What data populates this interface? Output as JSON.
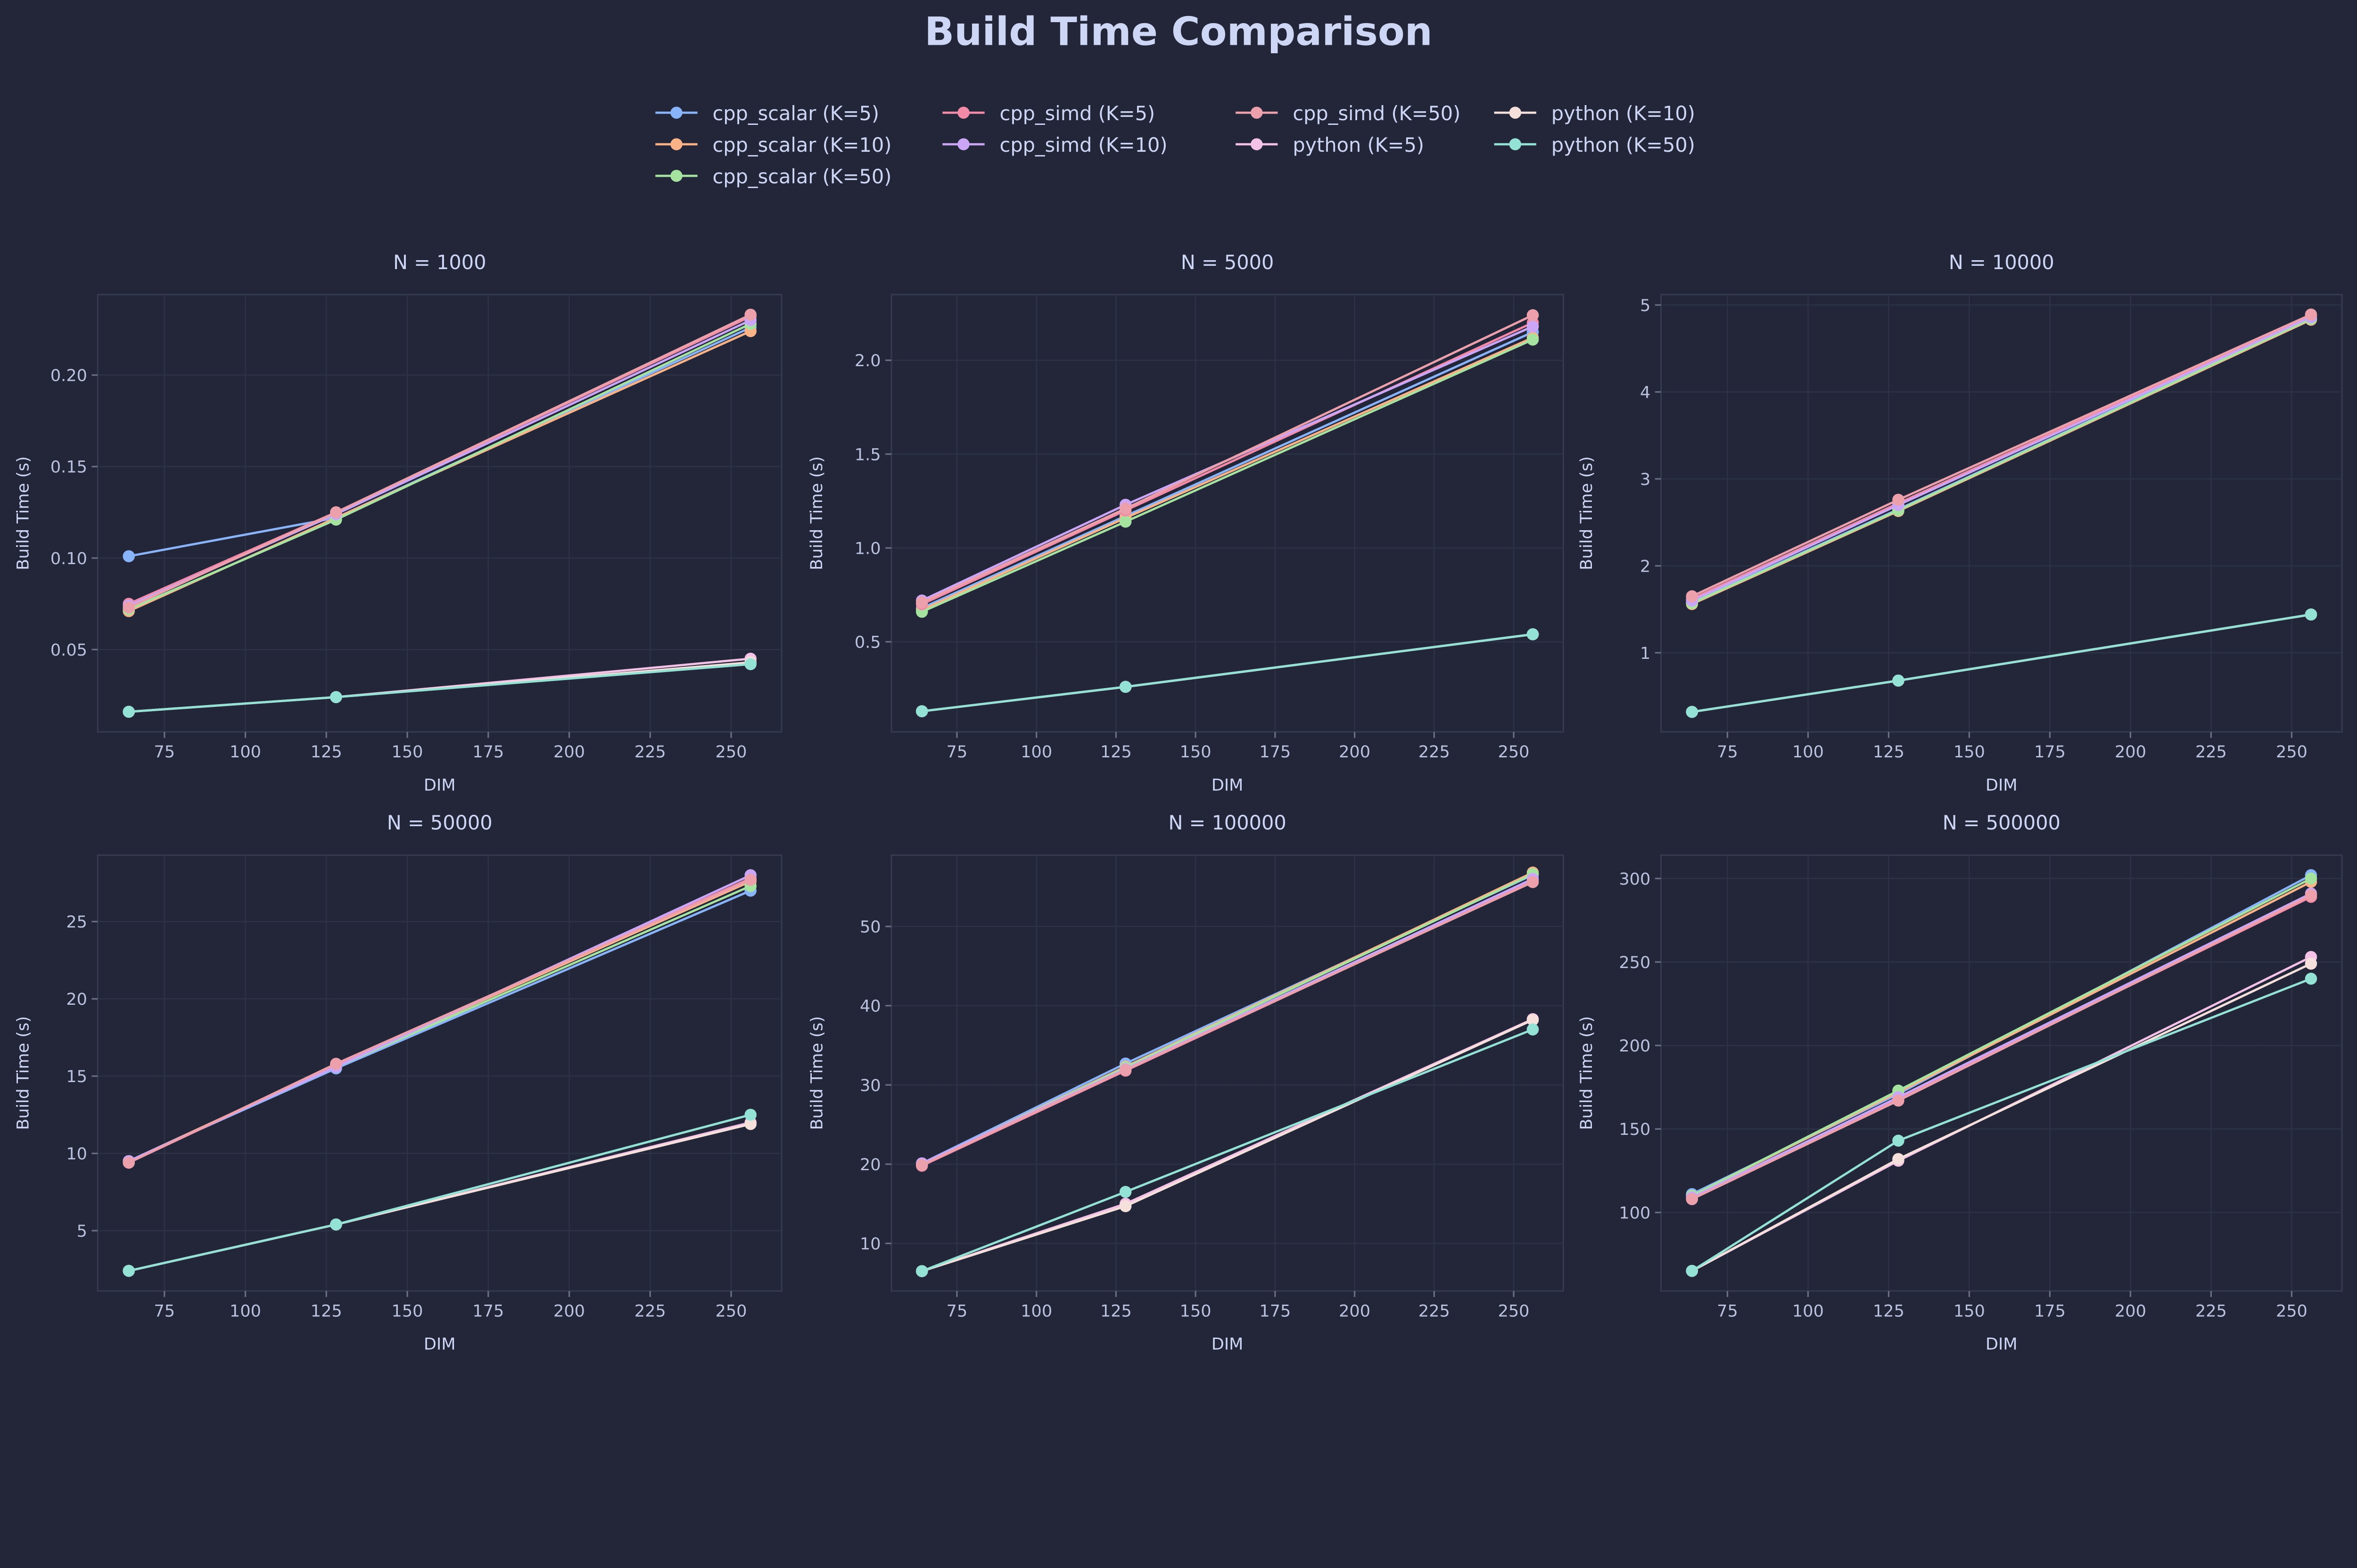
{
  "chart_data": {
    "title": "Build Time Comparison",
    "legend_placement": "top-center",
    "grid": true,
    "background": "#232639",
    "series_meta": [
      {
        "name": "cpp_scalar (K=5)",
        "color": "#89b4fa"
      },
      {
        "name": "cpp_scalar (K=10)",
        "color": "#fab387"
      },
      {
        "name": "cpp_scalar (K=50)",
        "color": "#a6e3a1"
      },
      {
        "name": "cpp_simd (K=5)",
        "color": "#f38ba8"
      },
      {
        "name": "cpp_simd (K=10)",
        "color": "#cba6f7"
      },
      {
        "name": "cpp_simd (K=50)",
        "color": "#eba0ac"
      },
      {
        "name": "python (K=5)",
        "color": "#f5c2e7"
      },
      {
        "name": "python (K=10)",
        "color": "#f5e0dc"
      },
      {
        "name": "python (K=50)",
        "color": "#94e2d5"
      }
    ],
    "panels": [
      {
        "type": "line",
        "title": "N = 1000",
        "xlabel": "DIM",
        "ylabel": "Build Time (s)",
        "x": [
          64,
          128,
          256
        ],
        "xlim": [
          54.4,
          265.6
        ],
        "xticks": [
          75,
          100,
          125,
          150,
          175,
          200,
          225,
          250
        ],
        "ylim": [
          0.005,
          0.244
        ],
        "yticks": [
          0.05,
          0.1,
          0.15,
          0.2
        ],
        "ytick_labels": [
          "0.05",
          "0.10",
          "0.15",
          "0.20"
        ],
        "series": [
          [
            0.101,
            0.122,
            0.226
          ],
          [
            0.071,
            0.122,
            0.224
          ],
          [
            0.072,
            0.121,
            0.228
          ],
          [
            0.075,
            0.125,
            0.232
          ],
          [
            0.074,
            0.124,
            0.23
          ],
          [
            0.073,
            0.125,
            0.233
          ],
          [
            0.016,
            0.024,
            0.045
          ],
          [
            0.016,
            0.024,
            0.043
          ],
          [
            0.016,
            0.024,
            0.042
          ]
        ]
      },
      {
        "type": "line",
        "title": "N = 5000",
        "xlabel": "DIM",
        "ylabel": "Build Time (s)",
        "x": [
          64,
          128,
          256
        ],
        "xlim": [
          54.4,
          265.6
        ],
        "xticks": [
          75,
          100,
          125,
          150,
          175,
          200,
          225,
          250
        ],
        "ylim": [
          0.02,
          2.35
        ],
        "yticks": [
          0.5,
          1.0,
          1.5,
          2.0
        ],
        "ytick_labels": [
          "0.5",
          "1.0",
          "1.5",
          "2.0"
        ],
        "series": [
          [
            0.68,
            1.17,
            2.15
          ],
          [
            0.67,
            1.16,
            2.12
          ],
          [
            0.66,
            1.14,
            2.11
          ],
          [
            0.7,
            1.2,
            2.2
          ],
          [
            0.72,
            1.23,
            2.18
          ],
          [
            0.71,
            1.21,
            2.24
          ],
          [
            0.13,
            0.26,
            0.54
          ],
          [
            0.13,
            0.26,
            0.54
          ],
          [
            0.13,
            0.26,
            0.54
          ]
        ]
      },
      {
        "type": "line",
        "title": "N = 10000",
        "xlabel": "DIM",
        "ylabel": "Build Time (s)",
        "x": [
          64,
          128,
          256
        ],
        "xlim": [
          54.4,
          265.6
        ],
        "xticks": [
          75,
          100,
          125,
          150,
          175,
          200,
          225,
          250
        ],
        "ylim": [
          0.09,
          5.12
        ],
        "yticks": [
          1,
          2,
          3,
          4,
          5
        ],
        "ytick_labels": [
          "1",
          "2",
          "3",
          "4",
          "5"
        ],
        "series": [
          [
            1.58,
            2.65,
            4.85
          ],
          [
            1.56,
            2.63,
            4.83
          ],
          [
            1.57,
            2.64,
            4.84
          ],
          [
            1.62,
            2.72,
            4.88
          ],
          [
            1.6,
            2.7,
            4.86
          ],
          [
            1.65,
            2.76,
            4.89
          ],
          [
            0.32,
            0.68,
            1.44
          ],
          [
            0.32,
            0.68,
            1.44
          ],
          [
            0.32,
            0.68,
            1.44
          ]
        ]
      },
      {
        "type": "line",
        "title": "N = 50000",
        "xlabel": "DIM",
        "ylabel": "Build Time (s)",
        "x": [
          64,
          128,
          256
        ],
        "xlim": [
          54.4,
          265.6
        ],
        "xticks": [
          75,
          100,
          125,
          150,
          175,
          200,
          225,
          250
        ],
        "ylim": [
          1.1,
          29.3
        ],
        "yticks": [
          5,
          10,
          15,
          20,
          25
        ],
        "ytick_labels": [
          "5",
          "10",
          "15",
          "20",
          "25"
        ],
        "series": [
          [
            9.5,
            15.5,
            27.0
          ],
          [
            9.5,
            15.7,
            27.6
          ],
          [
            9.5,
            15.6,
            27.3
          ],
          [
            9.4,
            15.7,
            27.8
          ],
          [
            9.5,
            15.6,
            28.0
          ],
          [
            9.4,
            15.8,
            27.7
          ],
          [
            2.4,
            5.4,
            12.0
          ],
          [
            2.4,
            5.4,
            11.9
          ],
          [
            2.4,
            5.4,
            12.5
          ]
        ]
      },
      {
        "type": "line",
        "title": "N = 100000",
        "xlabel": "DIM",
        "ylabel": "Build Time (s)",
        "x": [
          64,
          128,
          256
        ],
        "xlim": [
          54.4,
          265.6
        ],
        "xticks": [
          75,
          100,
          125,
          150,
          175,
          200,
          225,
          250
        ],
        "ylim": [
          4,
          59
        ],
        "yticks": [
          10,
          20,
          30,
          40,
          50
        ],
        "ytick_labels": [
          "10",
          "20",
          "30",
          "40",
          "50"
        ],
        "series": [
          [
            20.1,
            32.7,
            56.5
          ],
          [
            20.0,
            32.3,
            56.8
          ],
          [
            20.0,
            32.2,
            56.6
          ],
          [
            19.8,
            31.8,
            55.7
          ],
          [
            20.1,
            32.0,
            56.0
          ],
          [
            19.9,
            31.9,
            55.6
          ],
          [
            6.5,
            15.0,
            38.3
          ],
          [
            6.5,
            14.7,
            38.2
          ],
          [
            6.5,
            16.5,
            37.0
          ]
        ]
      },
      {
        "type": "line",
        "title": "N = 500000",
        "xlabel": "DIM",
        "ylabel": "Build Time (s)",
        "x": [
          64,
          128,
          256
        ],
        "xlim": [
          54.4,
          265.6
        ],
        "xticks": [
          75,
          100,
          125,
          150,
          175,
          200,
          225,
          250
        ],
        "ylim": [
          53,
          314
        ],
        "yticks": [
          100,
          150,
          200,
          250,
          300
        ],
        "ytick_labels": [
          "100",
          "150",
          "200",
          "250",
          "300"
        ],
        "series": [
          [
            111,
            171,
            302
          ],
          [
            110,
            172,
            298
          ],
          [
            110,
            173,
            300
          ],
          [
            108,
            168,
            289
          ],
          [
            109,
            169,
            291
          ],
          [
            108,
            167,
            290
          ],
          [
            65,
            131,
            253
          ],
          [
            65,
            132,
            249
          ],
          [
            65,
            143,
            240
          ]
        ]
      }
    ]
  }
}
